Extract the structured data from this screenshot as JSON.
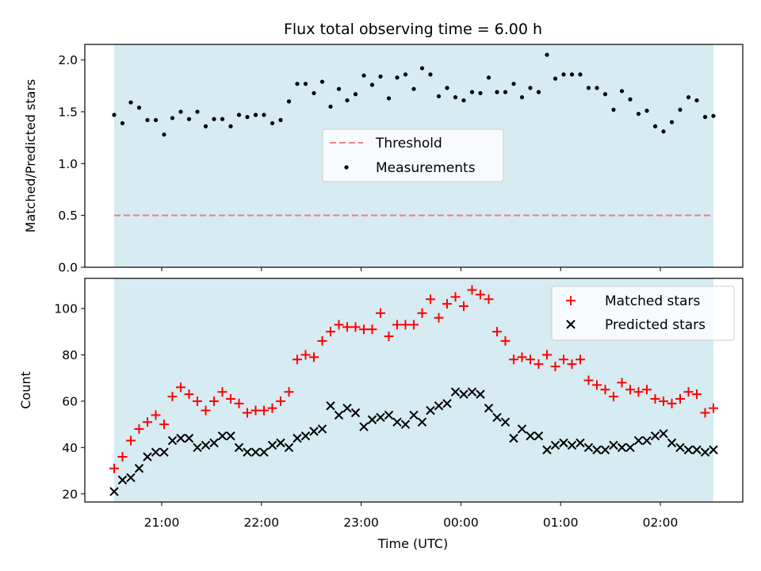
{
  "chart_data": [
    {
      "type": "scatter",
      "title": "Flux total observing time = 6.00 h",
      "xlabel": "",
      "ylabel": "Matched/Predicted stars",
      "ylim": [
        0,
        2.15
      ],
      "yticks": [
        "0.0",
        "0.5",
        "1.0",
        "1.5",
        "2.0"
      ],
      "shaded_span": [
        "20:30",
        "02:30"
      ],
      "shade_color": "#add8e6",
      "threshold": {
        "name": "Threshold",
        "value": 0.5,
        "color": "#f08080"
      },
      "legend": {
        "position": "center",
        "entries": [
          "Threshold",
          "Measurements"
        ]
      },
      "series": [
        {
          "name": "Measurements",
          "color": "#000000",
          "values": [
            1.47,
            1.39,
            1.59,
            1.54,
            1.42,
            1.42,
            1.28,
            1.44,
            1.5,
            1.43,
            1.5,
            1.36,
            1.43,
            1.43,
            1.36,
            1.47,
            1.45,
            1.47,
            1.47,
            1.39,
            1.42,
            1.6,
            1.77,
            1.77,
            1.68,
            1.79,
            1.55,
            1.72,
            1.61,
            1.67,
            1.85,
            1.76,
            1.84,
            1.63,
            1.83,
            1.86,
            1.72,
            1.92,
            1.86,
            1.65,
            1.73,
            1.64,
            1.61,
            1.69,
            1.68,
            1.83,
            1.69,
            1.69,
            1.77,
            1.64,
            1.73,
            1.69,
            2.05,
            1.82,
            1.86,
            1.86,
            1.86,
            1.73,
            1.73,
            1.67,
            1.52,
            1.7,
            1.62,
            1.48,
            1.51,
            1.36,
            1.31,
            1.4,
            1.52,
            1.64,
            1.61,
            1.45,
            1.46
          ]
        }
      ]
    },
    {
      "type": "scatter",
      "title": "",
      "xlabel": "Time (UTC)",
      "ylabel": "Count",
      "ylim": [
        16.5,
        113
      ],
      "yticks": [
        "20",
        "40",
        "60",
        "80",
        "100"
      ],
      "shaded_span": [
        "20:30",
        "02:30"
      ],
      "xticks": [
        "21:00",
        "22:00",
        "23:00",
        "00:00",
        "01:00",
        "02:00"
      ],
      "legend": {
        "position": "top-right",
        "entries": [
          "Matched stars",
          "Predicted stars"
        ]
      },
      "series": [
        {
          "name": "Matched stars",
          "marker": "plus",
          "color": "#ff0000",
          "values": [
            31,
            36,
            43,
            48,
            51,
            54,
            50,
            62,
            66,
            63,
            60,
            56,
            60,
            64,
            61,
            59,
            55,
            56,
            56,
            57,
            60,
            64,
            78,
            80,
            79,
            86,
            90,
            93,
            92,
            92,
            91,
            91,
            98,
            88,
            93,
            93,
            93,
            98,
            104,
            96,
            102,
            105,
            101,
            108,
            106,
            104,
            90,
            86,
            78,
            79,
            78,
            76,
            80,
            75,
            78,
            76,
            78,
            69,
            67,
            65,
            62,
            68,
            65,
            64,
            65,
            61,
            60,
            59,
            61,
            64,
            63,
            55,
            57
          ]
        },
        {
          "name": "Predicted stars",
          "marker": "x",
          "color": "#000000",
          "values": [
            21,
            26,
            27,
            31,
            36,
            38,
            38,
            43,
            44,
            44,
            40,
            41,
            42,
            45,
            45,
            40,
            38,
            38,
            38,
            41,
            42,
            40,
            44,
            45,
            47,
            48,
            58,
            54,
            57,
            55,
            49,
            52,
            53,
            54,
            51,
            50,
            54,
            51,
            56,
            58,
            59,
            64,
            63,
            64,
            63,
            57,
            53,
            51,
            44,
            48,
            45,
            45,
            39,
            41,
            42,
            41,
            42,
            40,
            39,
            39,
            41,
            40,
            40,
            43,
            43,
            45,
            46,
            42,
            40,
            39,
            39,
            38,
            39
          ]
        }
      ]
    }
  ]
}
